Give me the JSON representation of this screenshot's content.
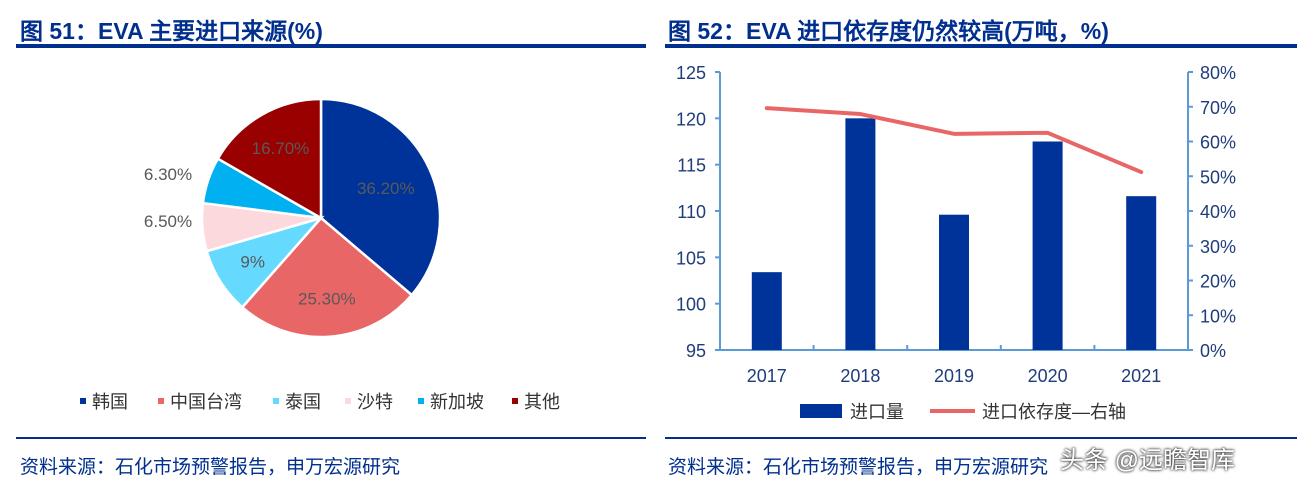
{
  "left": {
    "title": "图 51：EVA 主要进口来源(%)",
    "source": "资料来源：石化市场预警报告，申万宏源研究"
  },
  "right": {
    "title": "图 52：EVA 进口依存度仍然较高(万吨，%)",
    "source": "资料来源：石化市场预警报告，申万宏源研究"
  },
  "watermark": "头条 @远瞻智库",
  "chart_data": [
    {
      "type": "pie",
      "title": "EVA 主要进口来源(%)",
      "slices": [
        {
          "label": "韩国",
          "value": 36.2,
          "text": "36.20%",
          "color": "#003399"
        },
        {
          "label": "中国台湾",
          "value": 25.3,
          "text": "25.30%",
          "color": "#e96666"
        },
        {
          "label": "泰国",
          "value": 9,
          "text": "9%",
          "color": "#66d9ff"
        },
        {
          "label": "沙特",
          "value": 6.5,
          "text": "6.50%",
          "color": "#fbd9dc"
        },
        {
          "label": "新加坡",
          "value": 6.3,
          "text": "6.30%",
          "color": "#00b0f0"
        },
        {
          "label": "其他",
          "value": 16.7,
          "text": "16.70%",
          "color": "#990000"
        }
      ],
      "legend_position": "bottom"
    },
    {
      "type": "bar+line",
      "title": "EVA 进口依存度仍然较高(万吨，%)",
      "categories": [
        "2017",
        "2018",
        "2019",
        "2020",
        "2021"
      ],
      "series": [
        {
          "name": "进口量",
          "type": "bar",
          "axis": "left",
          "values": [
            103.4,
            120.0,
            109.6,
            117.5,
            111.6
          ],
          "color": "#003399"
        },
        {
          "name": "进口依存度—右轴",
          "type": "line",
          "axis": "right",
          "values": [
            69.6,
            67.9,
            62.2,
            62.5,
            51.2
          ],
          "color": "#e96666"
        }
      ],
      "ylim": [
        95,
        125
      ],
      "yticks": [
        "95",
        "100",
        "105",
        "110",
        "115",
        "120",
        "125"
      ],
      "y2lim": [
        0,
        80
      ],
      "y2ticks": [
        "0%",
        "10%",
        "20%",
        "30%",
        "40%",
        "50%",
        "60%",
        "70%",
        "80%"
      ],
      "legend_position": "bottom"
    }
  ]
}
